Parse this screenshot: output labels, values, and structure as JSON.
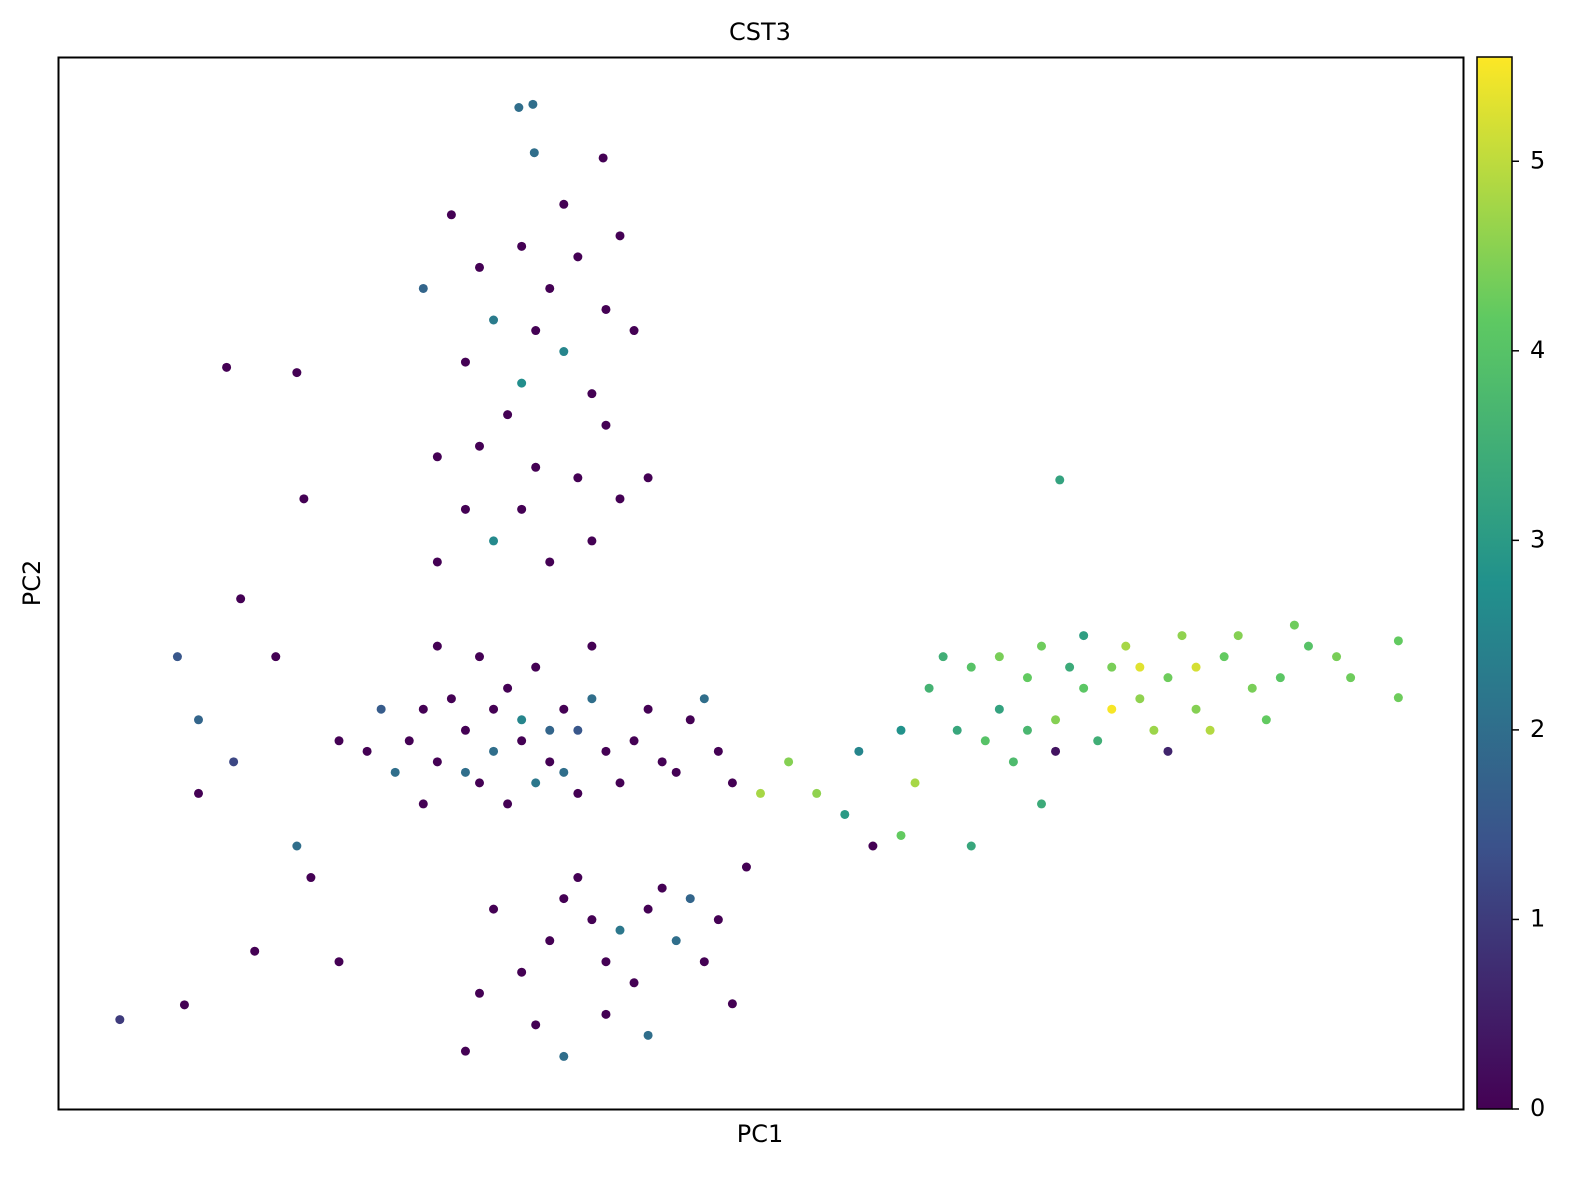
{
  "chart_data": {
    "type": "scatter",
    "title": "CST3",
    "xlabel": "PC1",
    "ylabel": "PC2",
    "xlim": [
      0,
      100
    ],
    "ylim": [
      0,
      100
    ],
    "x": [
      25,
      27,
      29,
      31,
      33,
      35,
      37,
      39,
      30,
      34,
      36,
      28,
      32,
      38,
      41,
      43,
      45,
      24,
      22,
      26,
      33,
      35,
      31,
      29,
      40,
      42,
      47,
      20,
      36,
      34,
      30,
      27,
      38,
      44,
      37,
      32,
      26,
      48,
      46,
      23,
      30,
      33,
      35,
      37,
      39,
      31,
      34,
      29,
      36,
      38,
      32,
      30,
      34,
      37,
      40,
      29,
      31,
      35,
      27,
      38,
      33,
      28,
      36,
      40,
      26,
      33,
      39,
      42,
      27,
      41,
      12,
      17,
      17.5,
      13,
      15.5,
      8.5,
      10,
      12.5,
      10,
      17,
      18,
      14,
      20,
      36,
      38,
      40,
      42,
      44,
      39,
      41,
      35,
      33,
      46,
      43,
      37,
      45,
      47,
      34,
      39,
      42,
      30,
      48,
      36,
      29,
      31,
      49,
      4.4,
      9,
      33.8,
      32.8,
      33.9,
      38.8,
      71.3,
      95.4,
      95.4,
      50,
      54,
      52,
      57,
      60,
      56,
      58,
      61,
      62,
      65,
      67,
      69,
      71,
      73,
      75,
      77,
      79,
      81,
      83,
      85,
      87,
      89,
      78,
      74,
      70,
      76,
      80,
      72,
      66,
      68,
      64,
      82,
      84,
      86,
      91,
      92,
      79,
      71,
      63,
      75,
      77,
      81,
      73,
      69,
      88,
      67,
      60,
      65,
      70
    ],
    "y": [
      35,
      33,
      36,
      34,
      35,
      33,
      36,
      34,
      31,
      31,
      38,
      39,
      40,
      39,
      35,
      33,
      37,
      32,
      34,
      38,
      37,
      36,
      38,
      32,
      31,
      38,
      34,
      35,
      32,
      42,
      43,
      44,
      44,
      32,
      30,
      29,
      29,
      31,
      39,
      38,
      80,
      82,
      78,
      81,
      76,
      75,
      74,
      71,
      72,
      68,
      66,
      63,
      61,
      60,
      58,
      57,
      54,
      52,
      52,
      54,
      57,
      85,
      86,
      83,
      78,
      69,
      65,
      60,
      62,
      74,
      70.5,
      70,
      58,
      48.5,
      43,
      43,
      37,
      33,
      30,
      25,
      22,
      15,
      14,
      20,
      18,
      17,
      19,
      16,
      14,
      12,
      16,
      13,
      14,
      21,
      22,
      20,
      18,
      8,
      9,
      7,
      11,
      10,
      5,
      5.5,
      19,
      23,
      8.5,
      9.9,
      95.5,
      95.2,
      90.9,
      90.4,
      59.8,
      44.5,
      39.1,
      30,
      30,
      33,
      34,
      36,
      28,
      25,
      31,
      40,
      42,
      38,
      41,
      37,
      40,
      42,
      39,
      41,
      38,
      43,
      40,
      41,
      44,
      36,
      35,
      44,
      44,
      45,
      42,
      35,
      33,
      36,
      36,
      45,
      37,
      43,
      41,
      34,
      34,
      43,
      38,
      42,
      42,
      45,
      36,
      46,
      43,
      26,
      25,
      29
    ],
    "color_values": [
      0,
      0,
      0,
      2,
      0,
      0,
      1.5,
      0,
      0,
      2.2,
      0,
      0,
      0,
      2,
      0,
      0,
      0,
      2,
      0,
      0,
      2.5,
      1.8,
      0,
      2,
      0,
      0,
      0,
      0,
      2,
      0,
      0,
      0,
      0,
      0,
      0,
      0,
      0,
      0,
      2,
      1.6,
      0,
      0,
      0,
      0,
      0,
      2.3,
      0,
      0,
      2.5,
      0,
      0,
      0,
      0,
      0,
      0,
      0,
      2.6,
      0,
      0,
      0,
      0,
      0,
      0,
      0,
      1.8,
      2.7,
      0,
      0,
      0,
      0,
      0,
      0,
      0,
      0,
      0,
      1.5,
      1.8,
      1.2,
      0,
      2,
      0,
      0,
      0,
      0,
      0,
      2.2,
      0,
      2,
      0,
      0,
      0,
      0,
      0,
      0,
      0,
      1.8,
      0,
      0,
      0,
      2,
      0,
      0,
      2,
      0,
      0,
      0,
      1,
      0,
      2,
      2,
      2,
      0,
      3.2,
      4.2,
      4.3,
      4.8,
      4.6,
      4.5,
      2.5,
      2.8,
      3,
      0,
      4.8,
      3.6,
      4,
      3.2,
      4.2,
      4.5,
      4.1,
      4.4,
      4.6,
      4.3,
      4.5,
      4.2,
      4.4,
      4.1,
      4,
      4.7,
      3.5,
      4.3,
      4.8,
      4.6,
      3.4,
      4,
      3.8,
      3.3,
      4.9,
      4.5,
      4.2,
      4.4,
      4.3,
      0.6,
      0.3,
      3.5,
      5.5,
      5.3,
      5.2,
      3.1,
      3.7,
      4.3,
      4.4,
      4.2,
      3.3,
      3.4
    ],
    "colormap": "viridis",
    "clim": [
      0,
      5.55
    ],
    "cticks": [
      0,
      1,
      2,
      3,
      4,
      5
    ]
  }
}
